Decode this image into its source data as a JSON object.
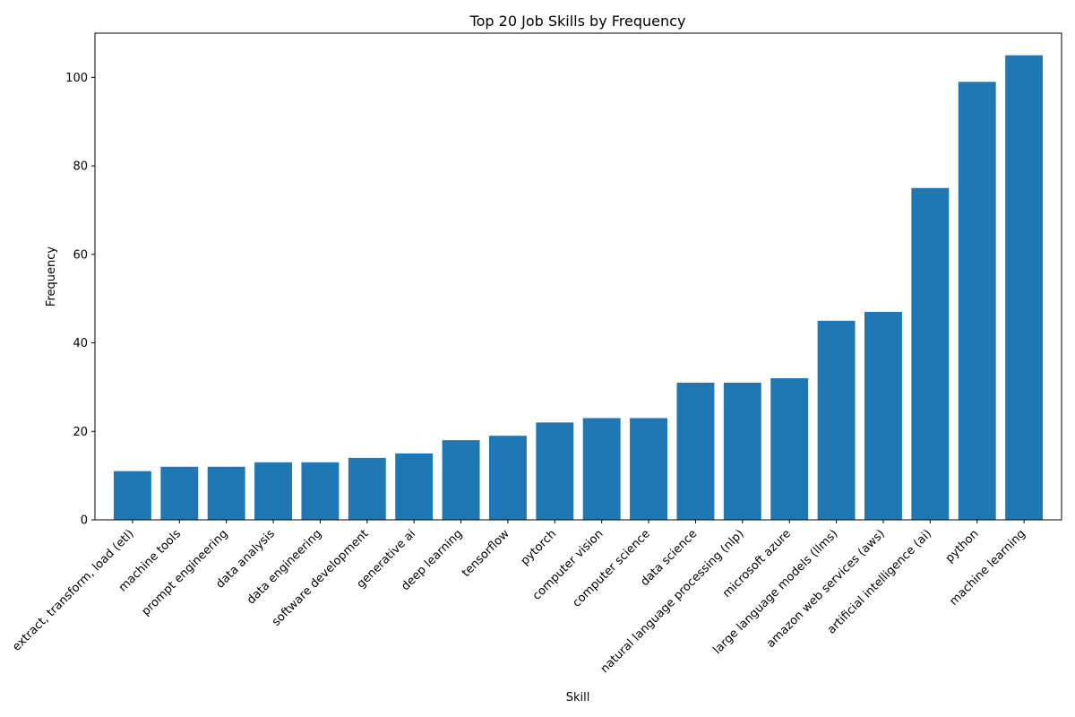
{
  "chart_data": {
    "type": "bar",
    "title": "Top 20 Job Skills by Frequency",
    "xlabel": "Skill",
    "ylabel": "Frequency",
    "ylim": [
      0,
      110
    ],
    "yticks": [
      0,
      20,
      40,
      60,
      80,
      100
    ],
    "grid": false,
    "bar_color": "#1f77b4",
    "categories": [
      "extract, transform, load (etl)",
      "machine tools",
      "prompt engineering",
      "data analysis",
      "data engineering",
      "software development",
      "generative ai",
      "deep learning",
      "tensorflow",
      "pytorch",
      "computer vision",
      "computer science",
      "data science",
      "natural language processing (nlp)",
      "microsoft azure",
      "large language models (llms)",
      "amazon web services (aws)",
      "artificial intelligence (ai)",
      "python",
      "machine learning"
    ],
    "values": [
      11,
      12,
      12,
      13,
      13,
      14,
      15,
      18,
      19,
      22,
      23,
      23,
      31,
      31,
      32,
      45,
      47,
      75,
      99,
      105
    ]
  }
}
